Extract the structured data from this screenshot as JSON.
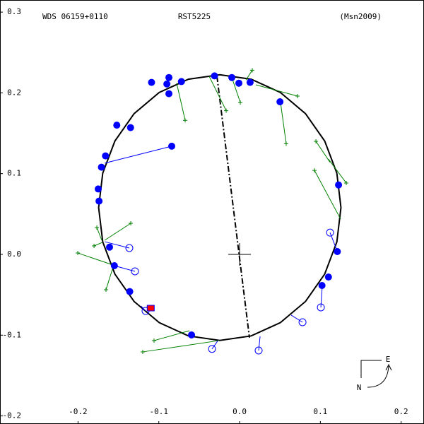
{
  "chart_data": {
    "type": "orbit",
    "title": "RST5225",
    "left_label": "WDS 06159+0110",
    "right_label": "(Msn2009)",
    "xlim": [
      -0.2966,
      0.2283
    ],
    "ylim": [
      -0.21,
      0.315
    ],
    "xticks": [
      -0.2,
      -0.1,
      {
        "value": 0,
        "label": "0.0"
      },
      0.1,
      0.2
    ],
    "yticks": [
      0.3,
      0.2,
      0.1,
      {
        "value": 0,
        "label": "0.0"
      },
      -0.1,
      -0.2
    ],
    "center": {
      "x": 0,
      "y": 0
    },
    "orbit": {
      "color": "#000000",
      "x": [
        0.1255,
        0.1204,
        0.1054,
        0.0816,
        0.0505,
        0.0144,
        -0.0245,
        -0.0634,
        -0.0995,
        -0.1306,
        -0.1544,
        -0.1694,
        -0.1745,
        -0.1694,
        -0.1544,
        -0.1306,
        -0.0995,
        -0.0634,
        -0.0245,
        0.0144,
        0.0505,
        0.0816,
        0.1054,
        0.1204,
        0.1255
      ],
      "y": [
        0.058,
        0.1006,
        0.1403,
        0.1743,
        0.2005,
        0.2169,
        0.2225,
        0.2169,
        0.2005,
        0.1743,
        0.1403,
        0.1006,
        0.058,
        0.0154,
        -0.0243,
        -0.0583,
        -0.0845,
        -0.1009,
        -0.1065,
        -0.1009,
        -0.0845,
        -0.0583,
        -0.0243,
        0.0154,
        0.058
      ]
    },
    "node_line": {
      "x": [
        -0.028,
        0.0122
      ],
      "y": [
        0.2205,
        -0.103
      ]
    },
    "filled": {
      "color": "#0000ff",
      "x": [
        -0.109,
        -0.0875,
        -0.09,
        -0.0875,
        -0.072,
        -0.031,
        -0.0096,
        -0.0009,
        0.013,
        0.05,
        -0.152,
        -0.135,
        -0.084,
        -0.166,
        -0.171,
        -0.175,
        -0.174,
        0.1225,
        0.121,
        -0.161,
        -0.155,
        -0.136,
        -0.0595,
        0.11,
        0.102
      ],
      "y": [
        0.213,
        0.219,
        0.211,
        0.199,
        0.214,
        0.221,
        0.219,
        0.212,
        0.213,
        0.189,
        0.16,
        0.157,
        0.134,
        0.122,
        0.108,
        0.081,
        0.066,
        0.086,
        0.0035,
        0.009,
        -0.014,
        -0.046,
        -0.0997,
        -0.028,
        -0.0385
      ]
    },
    "open": {
      "color": "#0000ff",
      "x": [
        -0.1365,
        -0.1295,
        -0.1164,
        -0.0341,
        0.0236,
        0.0779,
        0.1006,
        0.112
      ],
      "y": [
        0.0079,
        -0.021,
        -0.07,
        -0.117,
        -0.119,
        -0.084,
        -0.0656,
        0.027
      ]
    },
    "residuals": {
      "color": "#0000ff",
      "x1": [
        -0.084,
        -0.1365,
        -0.1295,
        -0.1164,
        -0.0341,
        0.0236,
        0.0779,
        0.1006,
        0.112
      ],
      "y1": [
        0.134,
        0.0079,
        -0.021,
        -0.07,
        -0.117,
        -0.119,
        -0.084,
        -0.0656,
        0.027
      ],
      "x2": [
        -0.167,
        -0.167,
        -0.155,
        -0.122,
        -0.027,
        0.0254,
        0.0639,
        0.1024,
        0.1207
      ],
      "y2": [
        0.113,
        0.0157,
        -0.014,
        -0.064,
        -0.107,
        -0.1015,
        -0.0752,
        -0.0385,
        0.0044
      ]
    },
    "crosses": {
      "color": "#008000",
      "x": [
        0.0157,
        0.0717,
        0.0577,
        0.0009,
        -0.0166,
        -0.0674,
        0.0945,
        0.0927,
        0.1321,
        -0.1347,
        -0.1767,
        -0.1802,
        -0.2003,
        -0.1654,
        -0.1059,
        -0.1199
      ],
      "y": [
        0.228,
        0.196,
        0.137,
        0.188,
        0.178,
        0.166,
        0.14,
        0.104,
        0.0884,
        0.0385,
        0.0332,
        0.0105,
        0.0017,
        -0.0437,
        -0.1067,
        -0.1207
      ],
      "ox": [
        0.0079,
        0.0201,
        0.0507,
        -0.0096,
        -0.0376,
        -0.0779,
        0.112,
        0.1251,
        0.11,
        -0.167,
        -0.1706,
        -0.1697,
        -0.1566,
        -0.1566,
        -0.0621,
        -0.0254
      ],
      "oy": [
        0.216,
        0.21,
        0.188,
        0.219,
        0.2205,
        0.212,
        0.114,
        0.0437,
        0.118,
        0.0175,
        0.0175,
        0.0149,
        -0.0131,
        -0.0157,
        -0.0945,
        -0.1067
      ]
    },
    "current": {
      "color": "#ff0000",
      "x": [
        -0.11
      ],
      "y": [
        -0.0665
      ]
    },
    "compass": {
      "north": "N",
      "east": "E"
    }
  }
}
